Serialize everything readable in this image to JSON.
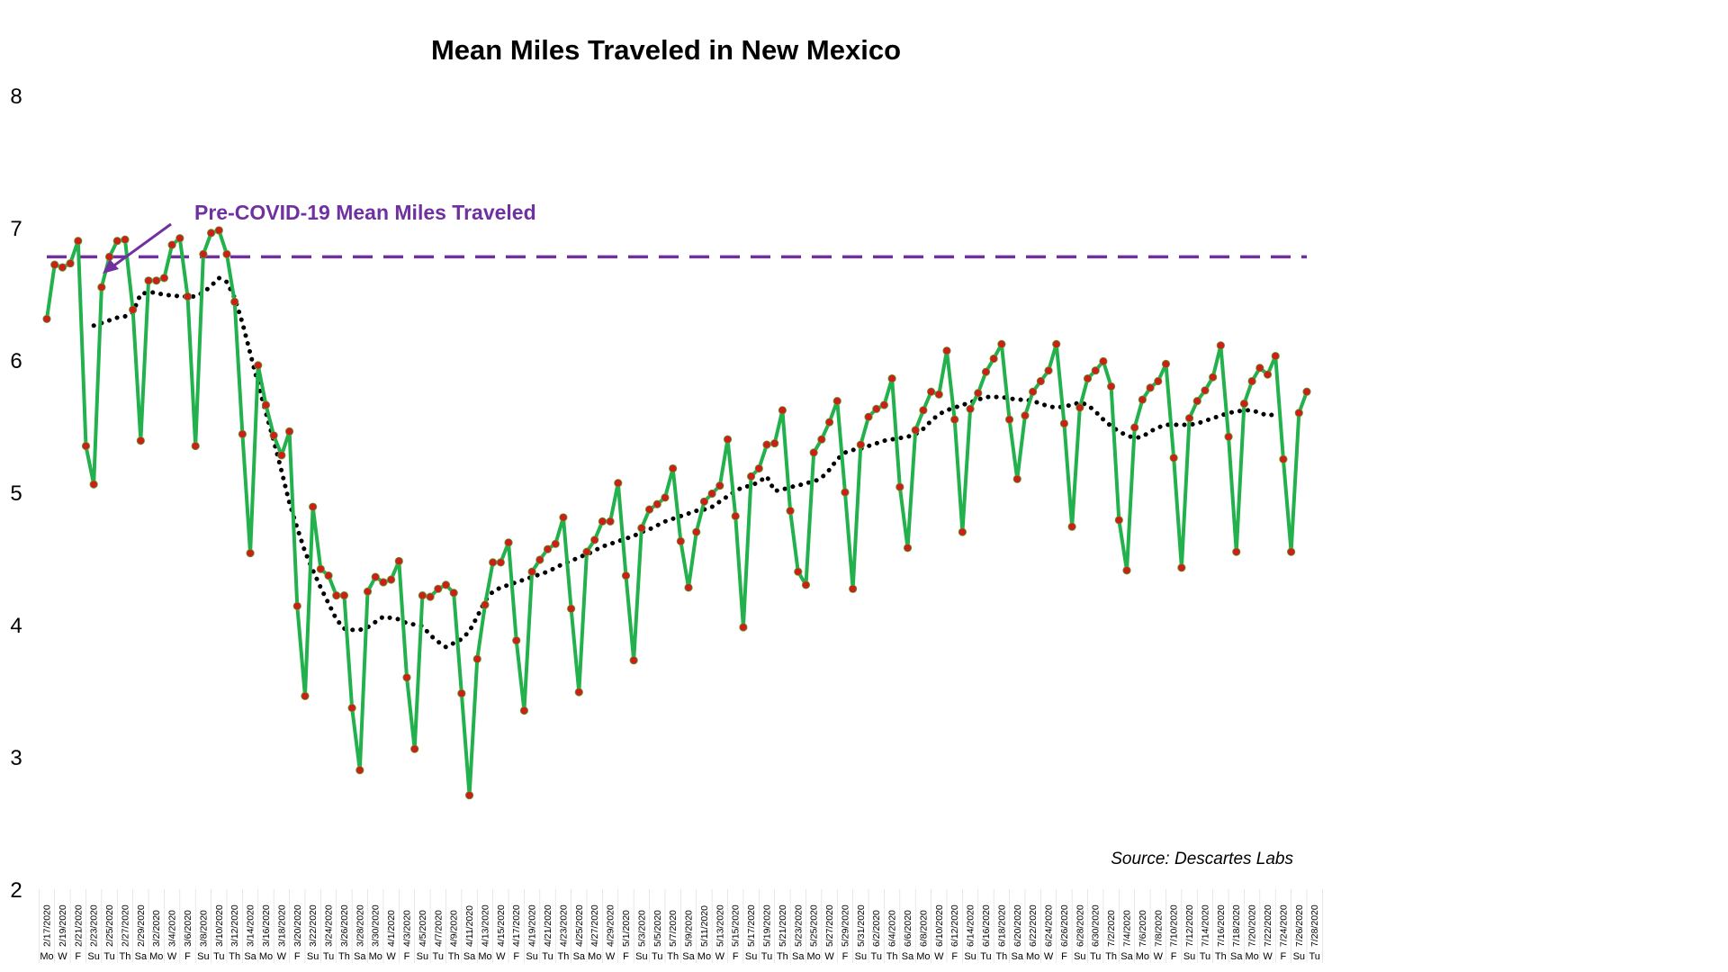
{
  "chart_data": {
    "type": "line",
    "title": "Mean Miles Traveled in New Mexico",
    "xlabel": "",
    "ylabel": "",
    "ylim": [
      2,
      8
    ],
    "yticks": [
      2,
      3,
      4,
      5,
      6,
      7,
      8
    ],
    "grid": false,
    "start_date": "2/17/2020",
    "x_tick_labels": [
      "2/17/2020",
      "2/19/2020",
      "2/21/2020",
      "2/23/2020",
      "2/25/2020",
      "2/27/2020",
      "2/29/2020",
      "3/2/2020",
      "3/4/2020",
      "3/6/2020",
      "3/8/2020",
      "3/10/2020",
      "3/12/2020",
      "3/14/2020",
      "3/16/2020",
      "3/18/2020",
      "3/20/2020",
      "3/22/2020",
      "3/24/2020",
      "3/26/2020",
      "3/28/2020",
      "3/30/2020",
      "4/1/2020",
      "4/3/2020",
      "4/5/2020",
      "4/7/2020",
      "4/9/2020",
      "4/11/2020",
      "4/13/2020",
      "4/15/2020",
      "4/17/2020",
      "4/19/2020",
      "4/21/2020",
      "4/23/2020",
      "4/25/2020",
      "4/27/2020",
      "4/29/2020",
      "5/1/2020",
      "5/3/2020",
      "5/5/2020",
      "5/7/2020",
      "5/9/2020",
      "5/11/2020",
      "5/13/2020",
      "5/15/2020",
      "5/17/2020",
      "5/19/2020",
      "5/21/2020",
      "5/23/2020",
      "5/25/2020",
      "5/27/2020",
      "5/29/2020",
      "5/31/2020",
      "6/2/2020",
      "6/4/2020",
      "6/6/2020",
      "6/8/2020",
      "6/10/2020",
      "6/12/2020",
      "6/14/2020",
      "6/16/2020",
      "6/18/2020",
      "6/20/2020",
      "6/22/2020",
      "6/24/2020",
      "6/26/2020",
      "6/28/2020",
      "6/30/2020",
      "7/2/2020",
      "7/4/2020",
      "7/6/2020",
      "7/8/2020",
      "7/10/2020",
      "7/12/2020",
      "7/14/2020",
      "7/16/2020",
      "7/18/2020",
      "7/20/2020",
      "7/22/2020",
      "7/24/2020",
      "7/26/2020",
      "7/28/2020"
    ],
    "x_day_labels": [
      "Mo",
      "W",
      "F",
      "Su",
      "Tu",
      "Th",
      "Sa",
      "Mo",
      "W",
      "F",
      "Su",
      "Tu",
      "Th",
      "Sa",
      "Mo",
      "W",
      "F",
      "Su",
      "Tu",
      "Th",
      "Sa",
      "Mo",
      "W",
      "F",
      "Su",
      "Tu",
      "Th",
      "Sa",
      "Mo",
      "W",
      "F",
      "Su",
      "Tu",
      "Th",
      "Sa",
      "Mo",
      "W",
      "F",
      "Su",
      "Tu",
      "Th",
      "Sa",
      "Mo",
      "W",
      "F",
      "Su",
      "Tu",
      "Th",
      "Sa",
      "Mo",
      "W",
      "F",
      "Su",
      "Tu",
      "Th",
      "Sa",
      "Mo",
      "W",
      "F",
      "Su",
      "Tu",
      "Th",
      "Sa",
      "Mo",
      "W",
      "F",
      "Su",
      "Tu",
      "Th",
      "Sa",
      "Mo",
      "W",
      "F",
      "Su",
      "Tu",
      "Th",
      "Sa",
      "Mo",
      "W",
      "F",
      "Su",
      "Tu"
    ],
    "series": [
      {
        "name": "",
        "type": "line",
        "color": "#22b14c",
        "marker_color": "#cc1f1a",
        "values": [
          6.31,
          6.72,
          6.7,
          6.73,
          6.9,
          5.35,
          5.06,
          6.55,
          6.78,
          6.9,
          6.91,
          6.38,
          5.39,
          6.6,
          6.6,
          6.62,
          6.87,
          6.92,
          6.48,
          5.35,
          6.8,
          6.96,
          6.98,
          6.8,
          6.44,
          5.44,
          4.54,
          5.96,
          5.66,
          5.43,
          5.28,
          5.46,
          4.14,
          3.46,
          4.89,
          4.42,
          4.37,
          4.22,
          4.22,
          3.37,
          2.9,
          4.25,
          4.36,
          4.32,
          4.34,
          4.48,
          3.6,
          3.06,
          4.22,
          4.21,
          4.27,
          4.3,
          4.24,
          3.48,
          2.71,
          3.74,
          4.15,
          4.47,
          4.47,
          4.62,
          3.88,
          3.35,
          4.4,
          4.49,
          4.57,
          4.61,
          4.81,
          4.12,
          3.49,
          4.55,
          4.64,
          4.78,
          4.78,
          5.07,
          4.37,
          3.73,
          4.73,
          4.87,
          4.91,
          4.96,
          5.18,
          4.63,
          4.28,
          4.7,
          4.93,
          4.99,
          5.05,
          5.4,
          4.82,
          3.98,
          5.12,
          5.18,
          5.36,
          5.37,
          5.62,
          4.86,
          4.4,
          4.3,
          5.3,
          5.4,
          5.53,
          5.69,
          5.0,
          4.27,
          5.36,
          5.57,
          5.63,
          5.66,
          5.86,
          5.04,
          4.58,
          5.47,
          5.62,
          5.76,
          5.74,
          6.07,
          5.55,
          4.7,
          5.63,
          5.75,
          5.91,
          6.01,
          6.12,
          5.55,
          5.1,
          5.58,
          5.76,
          5.84,
          5.92,
          6.12,
          5.52,
          4.74,
          5.64,
          5.86,
          5.92,
          5.99,
          5.8,
          4.79,
          4.41,
          5.49,
          5.7,
          5.79,
          5.84,
          5.97,
          5.26,
          4.43,
          5.56,
          5.69,
          5.77,
          5.87,
          6.11,
          5.42,
          4.55,
          5.67,
          5.84,
          5.94,
          5.89,
          6.03,
          5.25,
          4.55,
          5.6,
          5.76
        ]
      },
      {
        "name": "",
        "type": "line",
        "style": "dotted",
        "color": "#000000",
        "values": [
          null,
          null,
          null,
          null,
          null,
          null,
          6.26,
          6.28,
          6.3,
          6.32,
          6.33,
          6.36,
          6.5,
          6.51,
          6.51,
          6.49,
          6.49,
          6.48,
          6.48,
          6.48,
          6.51,
          6.56,
          6.62,
          6.59,
          6.47,
          6.28,
          6.05,
          5.82,
          5.6,
          5.39,
          5.16,
          4.92,
          4.73,
          4.55,
          4.41,
          4.28,
          4.16,
          4.04,
          3.97,
          3.96,
          3.96,
          3.98,
          4.02,
          4.06,
          4.05,
          4.04,
          4.01,
          4.0,
          3.99,
          3.92,
          3.87,
          3.83,
          3.86,
          3.89,
          3.95,
          4.06,
          4.18,
          4.25,
          4.28,
          4.3,
          4.32,
          4.34,
          4.36,
          4.38,
          4.4,
          4.43,
          4.46,
          4.48,
          4.51,
          4.53,
          4.56,
          4.59,
          4.61,
          4.63,
          4.65,
          4.67,
          4.7,
          4.72,
          4.75,
          4.78,
          4.8,
          4.82,
          4.84,
          4.86,
          4.87,
          4.89,
          4.93,
          4.97,
          5.01,
          5.04,
          5.05,
          5.08,
          5.12,
          5.01,
          5.02,
          5.04,
          5.05,
          5.07,
          5.08,
          5.11,
          5.17,
          5.25,
          5.3,
          5.32,
          5.33,
          5.35,
          5.37,
          5.39,
          5.4,
          5.41,
          5.42,
          5.44,
          5.48,
          5.54,
          5.59,
          5.62,
          5.64,
          5.66,
          5.68,
          5.7,
          5.72,
          5.72,
          5.72,
          5.71,
          5.7,
          5.7,
          5.69,
          5.67,
          5.65,
          5.64,
          5.65,
          5.66,
          5.68,
          5.66,
          5.61,
          5.55,
          5.5,
          5.46,
          5.43,
          5.41,
          5.42,
          5.46,
          5.49,
          5.51,
          5.51,
          5.51,
          5.51,
          5.52,
          5.54,
          5.56,
          5.58,
          5.6,
          5.61,
          5.62,
          5.62,
          5.6,
          5.58,
          5.59
        ]
      }
    ],
    "reference_line": {
      "label": "Pre-COVID-19 Mean Miles Traveled",
      "value": 6.78,
      "style": "dashed",
      "color": "#7030a0"
    },
    "annotations": [
      {
        "text": "Source: Descartes Labs",
        "style": "italic",
        "position": "bottom-right"
      }
    ]
  }
}
